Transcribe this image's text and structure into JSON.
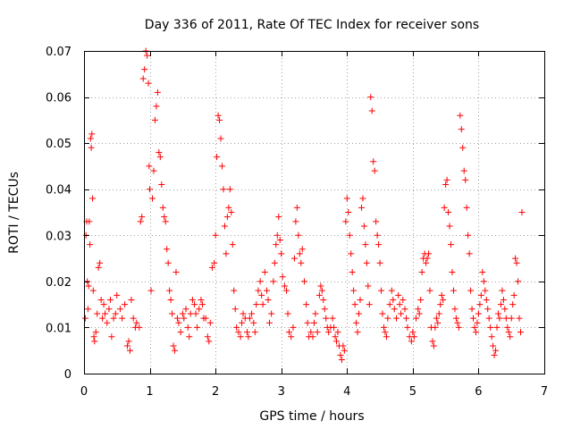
{
  "chart_data": {
    "type": "scatter",
    "title": "Day 336 of 2011, Rate Of TEC Index for receiver sons",
    "xlabel": "GPS time / hours",
    "ylabel": "ROTI / TECUs",
    "xlim": [
      0,
      7
    ],
    "ylim": [
      0,
      0.07
    ],
    "grid": true,
    "x_ticks": [
      0,
      1,
      2,
      3,
      4,
      5,
      6,
      7
    ],
    "x_tick_labels": [
      "0",
      "1",
      "2",
      "3",
      "4",
      "5",
      "6",
      "7"
    ],
    "y_ticks": [
      0,
      0.01,
      0.02,
      0.03,
      0.04,
      0.05,
      0.06,
      0.07
    ],
    "y_tick_labels": [
      "0",
      "0.01",
      "0.02",
      "0.03",
      "0.04",
      "0.05",
      "0.06",
      "0.07"
    ],
    "marker": "+",
    "color": "#ff0000",
    "series": [
      {
        "name": "ROTI",
        "points": [
          [
            0.02,
            0.012
          ],
          [
            0.03,
            0.03
          ],
          [
            0.04,
            0.033
          ],
          [
            0.05,
            0.02
          ],
          [
            0.06,
            0.014
          ],
          [
            0.07,
            0.019
          ],
          [
            0.08,
            0.033
          ],
          [
            0.09,
            0.028
          ],
          [
            0.1,
            0.051
          ],
          [
            0.11,
            0.049
          ],
          [
            0.12,
            0.052
          ],
          [
            0.13,
            0.038
          ],
          [
            0.14,
            0.018
          ],
          [
            0.15,
            0.008
          ],
          [
            0.16,
            0.007
          ],
          [
            0.18,
            0.009
          ],
          [
            0.2,
            0.013
          ],
          [
            0.22,
            0.023
          ],
          [
            0.24,
            0.024
          ],
          [
            0.26,
            0.016
          ],
          [
            0.28,
            0.012
          ],
          [
            0.3,
            0.015
          ],
          [
            0.32,
            0.013
          ],
          [
            0.35,
            0.011
          ],
          [
            0.38,
            0.014
          ],
          [
            0.4,
            0.016
          ],
          [
            0.42,
            0.008
          ],
          [
            0.45,
            0.012
          ],
          [
            0.48,
            0.013
          ],
          [
            0.5,
            0.017
          ],
          [
            0.55,
            0.014
          ],
          [
            0.58,
            0.012
          ],
          [
            0.62,
            0.015
          ],
          [
            0.66,
            0.006
          ],
          [
            0.68,
            0.007
          ],
          [
            0.7,
            0.005
          ],
          [
            0.72,
            0.016
          ],
          [
            0.75,
            0.012
          ],
          [
            0.78,
            0.01
          ],
          [
            0.8,
            0.011
          ],
          [
            0.84,
            0.01
          ],
          [
            0.86,
            0.033
          ],
          [
            0.88,
            0.034
          ],
          [
            0.9,
            0.064
          ],
          [
            0.92,
            0.066
          ],
          [
            0.94,
            0.07
          ],
          [
            0.96,
            0.069
          ],
          [
            0.98,
            0.063
          ],
          [
            0.99,
            0.045
          ],
          [
            1.0,
            0.04
          ],
          [
            1.02,
            0.018
          ],
          [
            1.04,
            0.038
          ],
          [
            1.06,
            0.044
          ],
          [
            1.08,
            0.055
          ],
          [
            1.1,
            0.058
          ],
          [
            1.12,
            0.061
          ],
          [
            1.14,
            0.048
          ],
          [
            1.16,
            0.047
          ],
          [
            1.18,
            0.041
          ],
          [
            1.2,
            0.036
          ],
          [
            1.22,
            0.034
          ],
          [
            1.24,
            0.033
          ],
          [
            1.26,
            0.027
          ],
          [
            1.28,
            0.024
          ],
          [
            1.3,
            0.018
          ],
          [
            1.32,
            0.016
          ],
          [
            1.34,
            0.013
          ],
          [
            1.36,
            0.006
          ],
          [
            1.38,
            0.005
          ],
          [
            1.4,
            0.022
          ],
          [
            1.42,
            0.012
          ],
          [
            1.44,
            0.011
          ],
          [
            1.47,
            0.009
          ],
          [
            1.5,
            0.013
          ],
          [
            1.52,
            0.012
          ],
          [
            1.55,
            0.014
          ],
          [
            1.58,
            0.01
          ],
          [
            1.6,
            0.008
          ],
          [
            1.62,
            0.013
          ],
          [
            1.65,
            0.016
          ],
          [
            1.68,
            0.015
          ],
          [
            1.7,
            0.013
          ],
          [
            1.72,
            0.01
          ],
          [
            1.75,
            0.014
          ],
          [
            1.78,
            0.016
          ],
          [
            1.8,
            0.015
          ],
          [
            1.82,
            0.012
          ],
          [
            1.85,
            0.012
          ],
          [
            1.88,
            0.008
          ],
          [
            1.9,
            0.007
          ],
          [
            1.92,
            0.011
          ],
          [
            1.95,
            0.023
          ],
          [
            1.98,
            0.024
          ],
          [
            2.0,
            0.03
          ],
          [
            2.02,
            0.047
          ],
          [
            2.04,
            0.056
          ],
          [
            2.06,
            0.055
          ],
          [
            2.08,
            0.051
          ],
          [
            2.1,
            0.045
          ],
          [
            2.12,
            0.04
          ],
          [
            2.14,
            0.032
          ],
          [
            2.16,
            0.026
          ],
          [
            2.18,
            0.034
          ],
          [
            2.2,
            0.036
          ],
          [
            2.22,
            0.04
          ],
          [
            2.24,
            0.035
          ],
          [
            2.26,
            0.028
          ],
          [
            2.28,
            0.018
          ],
          [
            2.3,
            0.014
          ],
          [
            2.32,
            0.01
          ],
          [
            2.35,
            0.009
          ],
          [
            2.38,
            0.008
          ],
          [
            2.4,
            0.011
          ],
          [
            2.42,
            0.013
          ],
          [
            2.45,
            0.012
          ],
          [
            2.48,
            0.009
          ],
          [
            2.5,
            0.008
          ],
          [
            2.52,
            0.012
          ],
          [
            2.55,
            0.013
          ],
          [
            2.58,
            0.011
          ],
          [
            2.6,
            0.009
          ],
          [
            2.62,
            0.015
          ],
          [
            2.65,
            0.018
          ],
          [
            2.68,
            0.02
          ],
          [
            2.7,
            0.017
          ],
          [
            2.72,
            0.015
          ],
          [
            2.75,
            0.022
          ],
          [
            2.78,
            0.018
          ],
          [
            2.8,
            0.016
          ],
          [
            2.82,
            0.011
          ],
          [
            2.85,
            0.013
          ],
          [
            2.88,
            0.02
          ],
          [
            2.9,
            0.024
          ],
          [
            2.92,
            0.028
          ],
          [
            2.94,
            0.03
          ],
          [
            2.96,
            0.034
          ],
          [
            2.98,
            0.029
          ],
          [
            3.0,
            0.026
          ],
          [
            3.02,
            0.021
          ],
          [
            3.05,
            0.019
          ],
          [
            3.08,
            0.018
          ],
          [
            3.1,
            0.013
          ],
          [
            3.12,
            0.009
          ],
          [
            3.15,
            0.008
          ],
          [
            3.18,
            0.01
          ],
          [
            3.2,
            0.025
          ],
          [
            3.22,
            0.033
          ],
          [
            3.24,
            0.036
          ],
          [
            3.26,
            0.03
          ],
          [
            3.28,
            0.026
          ],
          [
            3.3,
            0.024
          ],
          [
            3.32,
            0.027
          ],
          [
            3.35,
            0.02
          ],
          [
            3.38,
            0.015
          ],
          [
            3.4,
            0.011
          ],
          [
            3.42,
            0.008
          ],
          [
            3.45,
            0.009
          ],
          [
            3.48,
            0.008
          ],
          [
            3.5,
            0.011
          ],
          [
            3.52,
            0.013
          ],
          [
            3.55,
            0.009
          ],
          [
            3.58,
            0.017
          ],
          [
            3.6,
            0.019
          ],
          [
            3.62,
            0.018
          ],
          [
            3.64,
            0.016
          ],
          [
            3.66,
            0.014
          ],
          [
            3.68,
            0.012
          ],
          [
            3.7,
            0.01
          ],
          [
            3.72,
            0.009
          ],
          [
            3.75,
            0.01
          ],
          [
            3.78,
            0.012
          ],
          [
            3.8,
            0.01
          ],
          [
            3.82,
            0.008
          ],
          [
            3.84,
            0.007
          ],
          [
            3.86,
            0.009
          ],
          [
            3.88,
            0.006
          ],
          [
            3.9,
            0.004
          ],
          [
            3.92,
            0.003
          ],
          [
            3.94,
            0.006
          ],
          [
            3.96,
            0.005
          ],
          [
            3.98,
            0.033
          ],
          [
            4.0,
            0.038
          ],
          [
            4.02,
            0.035
          ],
          [
            4.04,
            0.03
          ],
          [
            4.06,
            0.026
          ],
          [
            4.08,
            0.022
          ],
          [
            4.1,
            0.018
          ],
          [
            4.12,
            0.015
          ],
          [
            4.14,
            0.011
          ],
          [
            4.16,
            0.009
          ],
          [
            4.18,
            0.013
          ],
          [
            4.2,
            0.016
          ],
          [
            4.22,
            0.036
          ],
          [
            4.24,
            0.038
          ],
          [
            4.26,
            0.032
          ],
          [
            4.28,
            0.028
          ],
          [
            4.3,
            0.024
          ],
          [
            4.32,
            0.019
          ],
          [
            4.34,
            0.015
          ],
          [
            4.36,
            0.06
          ],
          [
            4.38,
            0.057
          ],
          [
            4.4,
            0.046
          ],
          [
            4.42,
            0.044
          ],
          [
            4.44,
            0.033
          ],
          [
            4.46,
            0.03
          ],
          [
            4.48,
            0.028
          ],
          [
            4.5,
            0.024
          ],
          [
            4.52,
            0.018
          ],
          [
            4.54,
            0.013
          ],
          [
            4.56,
            0.01
          ],
          [
            4.58,
            0.009
          ],
          [
            4.6,
            0.008
          ],
          [
            4.62,
            0.012
          ],
          [
            4.65,
            0.015
          ],
          [
            4.68,
            0.018
          ],
          [
            4.7,
            0.016
          ],
          [
            4.72,
            0.014
          ],
          [
            4.75,
            0.012
          ],
          [
            4.78,
            0.017
          ],
          [
            4.8,
            0.015
          ],
          [
            4.82,
            0.013
          ],
          [
            4.85,
            0.016
          ],
          [
            4.88,
            0.014
          ],
          [
            4.9,
            0.012
          ],
          [
            4.92,
            0.01
          ],
          [
            4.95,
            0.008
          ],
          [
            4.98,
            0.007
          ],
          [
            5.0,
            0.009
          ],
          [
            5.02,
            0.008
          ],
          [
            5.05,
            0.012
          ],
          [
            5.08,
            0.014
          ],
          [
            5.1,
            0.013
          ],
          [
            5.12,
            0.016
          ],
          [
            5.14,
            0.022
          ],
          [
            5.16,
            0.025
          ],
          [
            5.18,
            0.026
          ],
          [
            5.2,
            0.024
          ],
          [
            5.22,
            0.025
          ],
          [
            5.24,
            0.026
          ],
          [
            5.26,
            0.018
          ],
          [
            5.28,
            0.01
          ],
          [
            5.3,
            0.007
          ],
          [
            5.32,
            0.006
          ],
          [
            5.34,
            0.01
          ],
          [
            5.36,
            0.012
          ],
          [
            5.38,
            0.011
          ],
          [
            5.4,
            0.013
          ],
          [
            5.42,
            0.015
          ],
          [
            5.44,
            0.017
          ],
          [
            5.46,
            0.016
          ],
          [
            5.48,
            0.036
          ],
          [
            5.5,
            0.041
          ],
          [
            5.52,
            0.042
          ],
          [
            5.54,
            0.035
          ],
          [
            5.56,
            0.032
          ],
          [
            5.58,
            0.028
          ],
          [
            5.6,
            0.022
          ],
          [
            5.62,
            0.018
          ],
          [
            5.64,
            0.014
          ],
          [
            5.66,
            0.012
          ],
          [
            5.68,
            0.011
          ],
          [
            5.7,
            0.01
          ],
          [
            5.72,
            0.056
          ],
          [
            5.74,
            0.053
          ],
          [
            5.76,
            0.049
          ],
          [
            5.78,
            0.044
          ],
          [
            5.8,
            0.042
          ],
          [
            5.82,
            0.036
          ],
          [
            5.84,
            0.03
          ],
          [
            5.86,
            0.026
          ],
          [
            5.88,
            0.018
          ],
          [
            5.9,
            0.014
          ],
          [
            5.92,
            0.012
          ],
          [
            5.94,
            0.01
          ],
          [
            5.96,
            0.009
          ],
          [
            5.98,
            0.011
          ],
          [
            6.0,
            0.013
          ],
          [
            6.02,
            0.015
          ],
          [
            6.04,
            0.017
          ],
          [
            6.06,
            0.022
          ],
          [
            6.08,
            0.02
          ],
          [
            6.1,
            0.018
          ],
          [
            6.12,
            0.016
          ],
          [
            6.14,
            0.014
          ],
          [
            6.16,
            0.012
          ],
          [
            6.18,
            0.01
          ],
          [
            6.2,
            0.008
          ],
          [
            6.22,
            0.006
          ],
          [
            6.24,
            0.004
          ],
          [
            6.26,
            0.005
          ],
          [
            6.28,
            0.01
          ],
          [
            6.3,
            0.013
          ],
          [
            6.32,
            0.012
          ],
          [
            6.34,
            0.015
          ],
          [
            6.36,
            0.018
          ],
          [
            6.38,
            0.016
          ],
          [
            6.4,
            0.014
          ],
          [
            6.42,
            0.012
          ],
          [
            6.44,
            0.01
          ],
          [
            6.46,
            0.009
          ],
          [
            6.48,
            0.008
          ],
          [
            6.5,
            0.012
          ],
          [
            6.52,
            0.015
          ],
          [
            6.54,
            0.017
          ],
          [
            6.56,
            0.025
          ],
          [
            6.58,
            0.024
          ],
          [
            6.6,
            0.02
          ],
          [
            6.62,
            0.012
          ],
          [
            6.64,
            0.009
          ],
          [
            6.66,
            0.035
          ]
        ]
      }
    ]
  }
}
